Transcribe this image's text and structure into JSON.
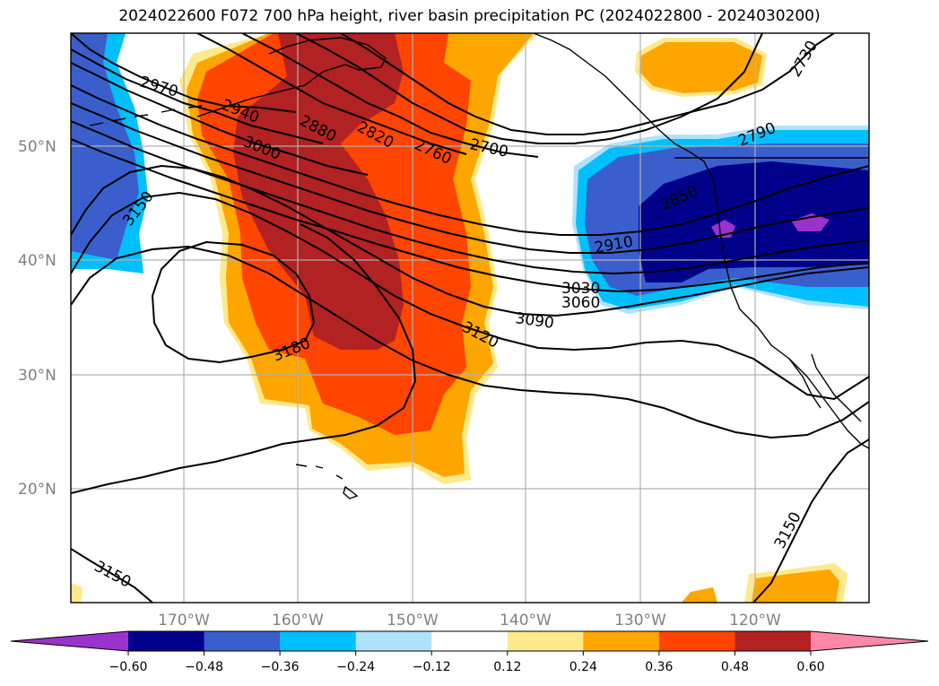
{
  "title": "2024022600 F072 700 hPa height, river basin precipitation PC (2024022800 - 2024030200)",
  "lat_labels": [
    "50°N",
    "40°N",
    "30°N",
    "20°N"
  ],
  "lon_labels": [
    "170°W",
    "160°W",
    "150°W",
    "140°W",
    "130°W",
    "120°W"
  ],
  "contour_labels": [
    "2970",
    "2940",
    "3000",
    "2880",
    "2820",
    "2760",
    "2700",
    "3150",
    "2730",
    "2790",
    "2850",
    "2910",
    "3030",
    "3060",
    "3090",
    "3120",
    "3180",
    "3150",
    "3150"
  ],
  "colorbar": {
    "ticks": [
      "−0.60",
      "−0.48",
      "−0.36",
      "−0.24",
      "−0.12",
      "0.12",
      "0.24",
      "0.36",
      "0.48",
      "0.60"
    ],
    "colors": [
      "#9933cc",
      "#00008b",
      "#3a5fcd",
      "#00bfff",
      "#b0e2ff",
      "#ffffff",
      "#ffe98a",
      "#ffa500",
      "#ff4500",
      "#b22222",
      "#ff88aa"
    ]
  }
}
